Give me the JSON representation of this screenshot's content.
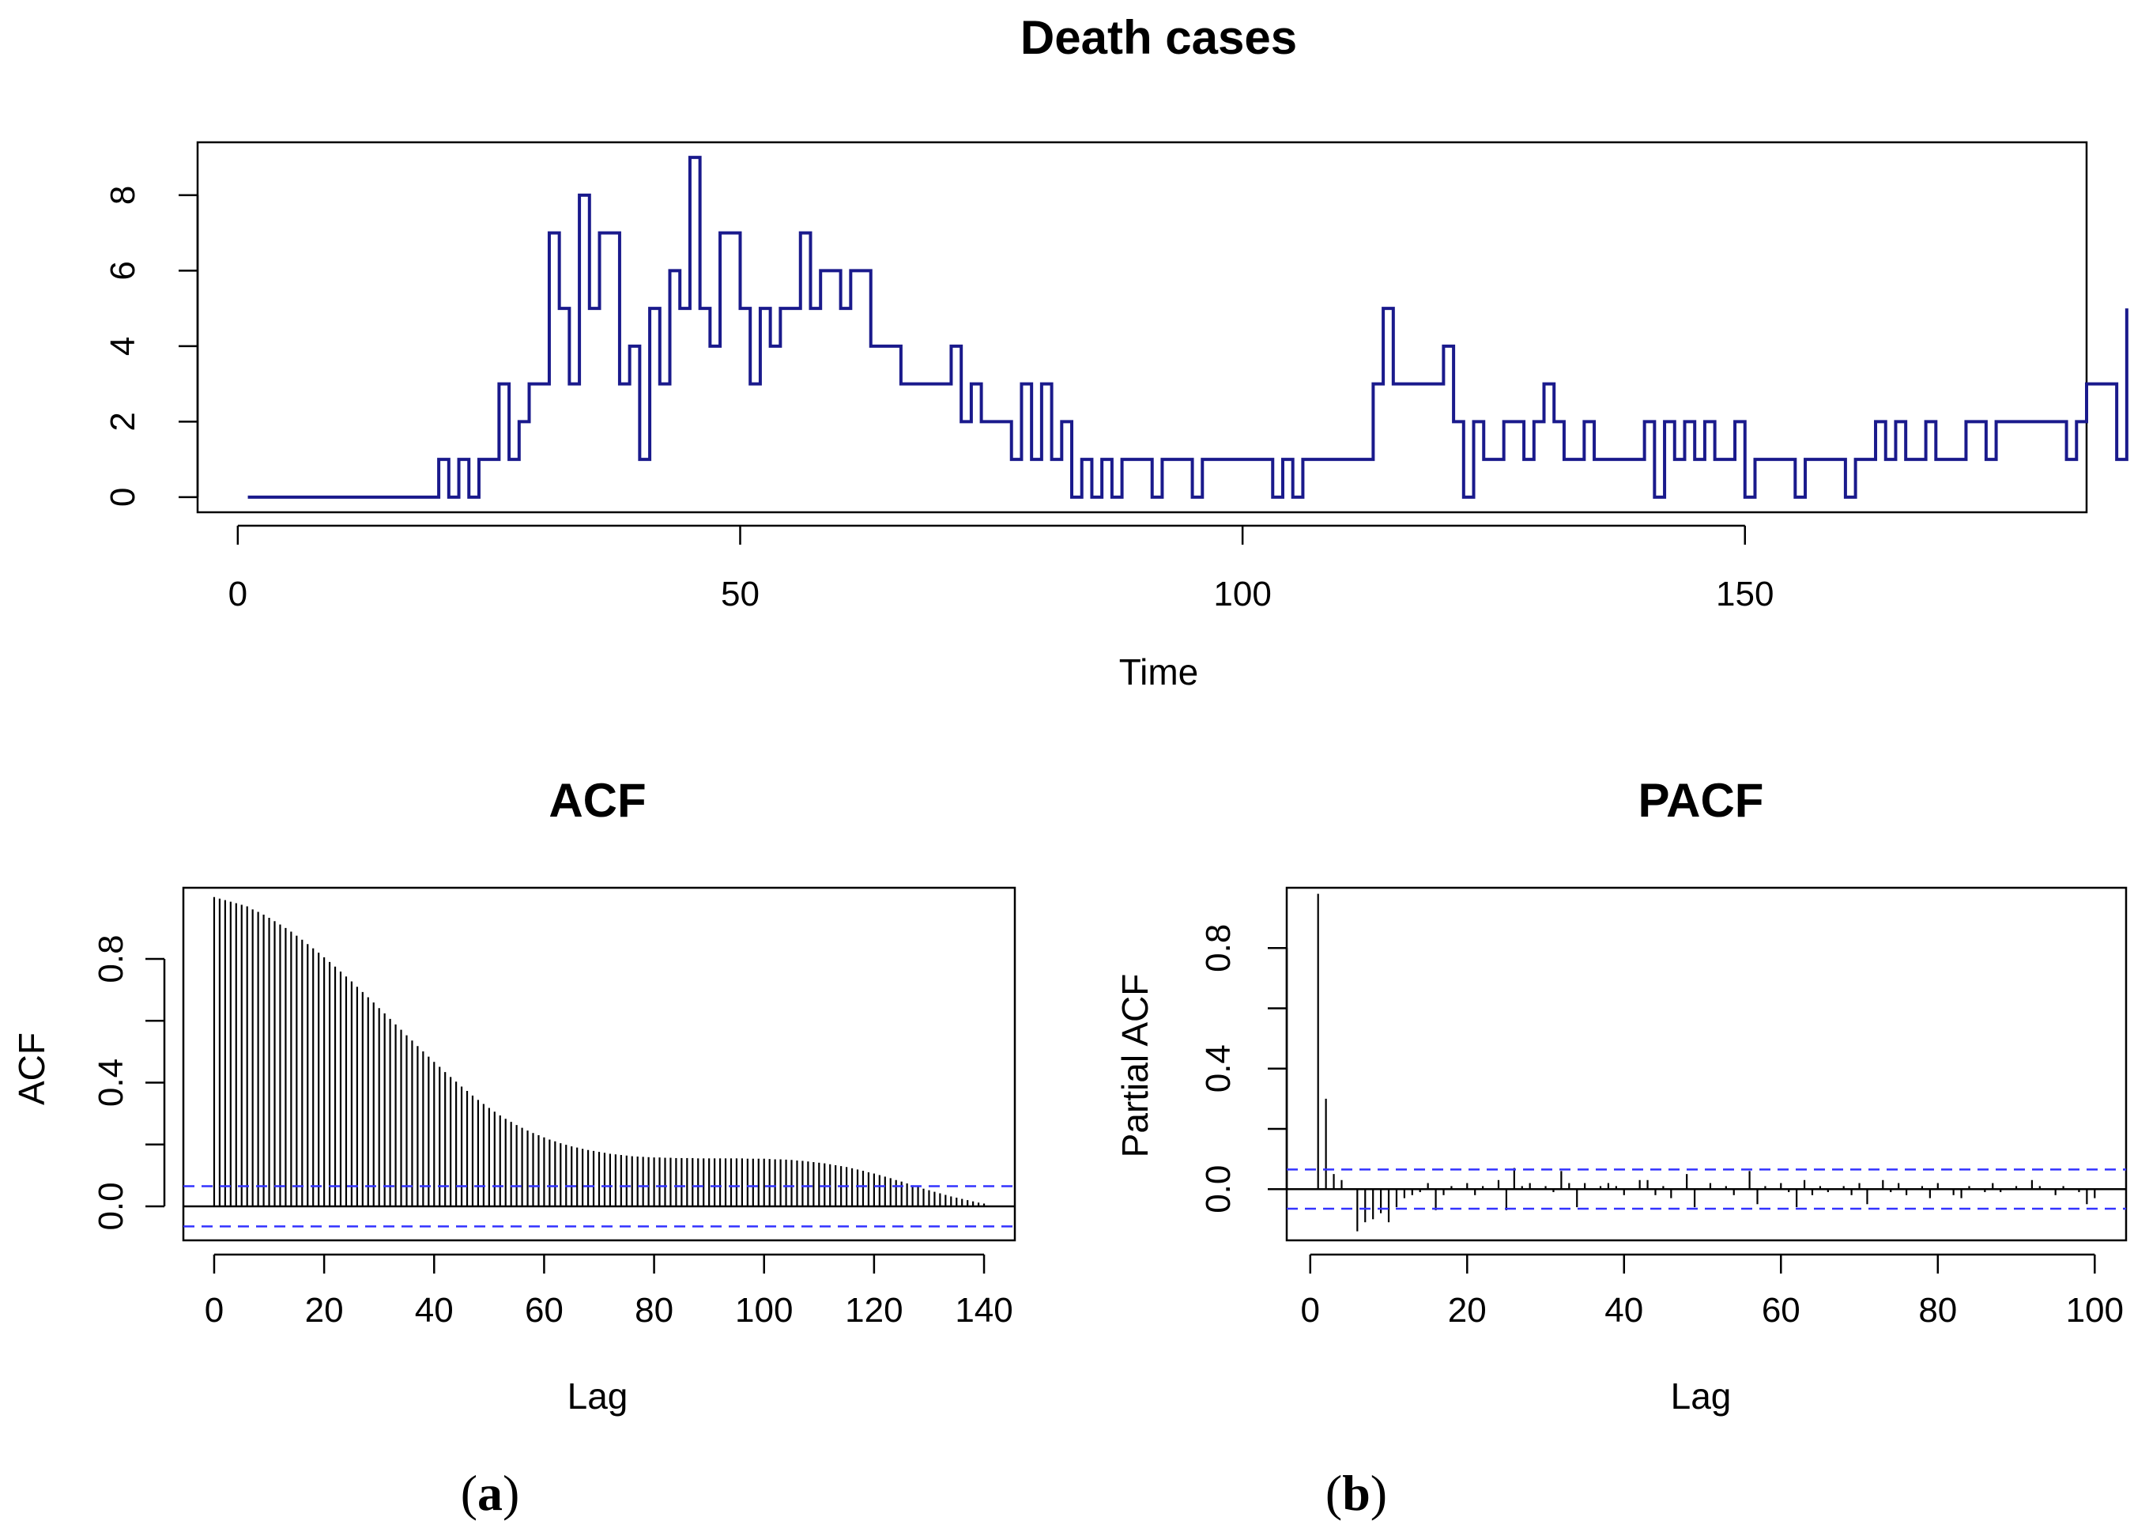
{
  "chart_data": [
    {
      "type": "line",
      "title": "Death cases",
      "xlabel": "Time",
      "ylabel": "",
      "xlim": [
        -4,
        184
      ],
      "ylim": [
        -0.4,
        9.4
      ],
      "xticks": [
        "0",
        "50",
        "100",
        "150"
      ],
      "yticks": [
        "0",
        "2",
        "4",
        "6",
        "8"
      ],
      "step": true,
      "line_color": "#1a1a8c",
      "x_start": 1,
      "values": [
        0,
        0,
        0,
        0,
        0,
        0,
        0,
        0,
        0,
        0,
        0,
        0,
        0,
        0,
        0,
        0,
        0,
        0,
        0,
        1,
        0,
        1,
        0,
        1,
        1,
        3,
        1,
        2,
        3,
        3,
        7,
        5,
        3,
        8,
        5,
        7,
        7,
        3,
        4,
        1,
        5,
        3,
        6,
        5,
        9,
        5,
        4,
        7,
        7,
        5,
        3,
        5,
        4,
        5,
        5,
        7,
        5,
        6,
        6,
        5,
        6,
        6,
        4,
        4,
        4,
        3,
        3,
        3,
        3,
        3,
        4,
        2,
        3,
        2,
        2,
        2,
        1,
        3,
        1,
        3,
        1,
        2,
        0,
        1,
        0,
        1,
        0,
        1,
        1,
        1,
        0,
        1,
        1,
        1,
        0,
        1,
        1,
        1,
        1,
        1,
        1,
        1,
        0,
        1,
        0,
        1,
        1,
        1,
        1,
        1,
        1,
        1,
        3,
        5,
        3,
        3,
        3,
        3,
        3,
        4,
        2,
        0,
        2,
        1,
        1,
        2,
        2,
        1,
        2,
        3,
        2,
        1,
        1,
        2,
        1,
        1,
        1,
        1,
        1,
        2,
        0,
        2,
        1,
        2,
        1,
        2,
        1,
        1,
        2,
        0,
        1,
        1,
        1,
        1,
        0,
        1,
        1,
        1,
        1,
        0,
        1,
        1,
        2,
        1,
        2,
        1,
        1,
        2,
        1,
        1,
        1,
        2,
        2,
        1,
        2,
        2,
        2,
        2,
        2,
        2,
        2,
        1,
        2,
        3,
        3,
        3,
        1,
        5
      ]
    },
    {
      "type": "bar",
      "title": "ACF",
      "xlabel": "Lag",
      "ylabel": "ACF",
      "xlim": [
        -5.6,
        145.6
      ],
      "ylim": [
        -0.11,
        1.03
      ],
      "xticks": [
        "0",
        "20",
        "40",
        "60",
        "80",
        "100",
        "120",
        "140"
      ],
      "yticks": [
        "0.0",
        "0.4",
        "0.8"
      ],
      "confidence_bound": 0.065,
      "bound_color": "#3333ff",
      "lags_start": 0,
      "values": [
        1.0,
        0.995,
        0.99,
        0.985,
        0.98,
        0.975,
        0.97,
        0.96,
        0.952,
        0.943,
        0.933,
        0.922,
        0.911,
        0.9,
        0.888,
        0.875,
        0.862,
        0.848,
        0.834,
        0.82,
        0.805,
        0.79,
        0.775,
        0.759,
        0.743,
        0.727,
        0.71,
        0.693,
        0.676,
        0.659,
        0.641,
        0.624,
        0.606,
        0.588,
        0.571,
        0.553,
        0.536,
        0.518,
        0.501,
        0.484,
        0.467,
        0.451,
        0.434,
        0.418,
        0.403,
        0.387,
        0.373,
        0.358,
        0.344,
        0.331,
        0.318,
        0.306,
        0.294,
        0.283,
        0.273,
        0.263,
        0.254,
        0.245,
        0.237,
        0.23,
        0.223,
        0.216,
        0.21,
        0.204,
        0.199,
        0.194,
        0.19,
        0.186,
        0.182,
        0.179,
        0.176,
        0.173,
        0.17,
        0.168,
        0.166,
        0.164,
        0.162,
        0.161,
        0.16,
        0.159,
        0.158,
        0.158,
        0.157,
        0.157,
        0.156,
        0.156,
        0.156,
        0.156,
        0.155,
        0.155,
        0.155,
        0.155,
        0.155,
        0.155,
        0.155,
        0.155,
        0.155,
        0.154,
        0.154,
        0.154,
        0.154,
        0.153,
        0.152,
        0.152,
        0.151,
        0.15,
        0.148,
        0.147,
        0.145,
        0.143,
        0.141,
        0.139,
        0.136,
        0.133,
        0.13,
        0.127,
        0.123,
        0.119,
        0.115,
        0.11,
        0.106,
        0.101,
        0.096,
        0.091,
        0.085,
        0.08,
        0.074,
        0.068,
        0.063,
        0.057,
        0.052,
        0.047,
        0.042,
        0.037,
        0.032,
        0.028,
        0.024,
        0.02,
        0.016,
        0.012,
        0.009
      ]
    },
    {
      "type": "bar",
      "title": "PACF",
      "xlabel": "Lag",
      "ylabel": "Partial ACF",
      "xlim": [
        -3.0,
        104.0
      ],
      "ylim": [
        -0.17,
        1.0
      ],
      "xticks": [
        "0",
        "20",
        "40",
        "60",
        "80",
        "100"
      ],
      "yticks": [
        "0.0",
        "0.4",
        "0.8"
      ],
      "confidence_bound": 0.065,
      "bound_color": "#3333ff",
      "lags_start": 1,
      "values": [
        0.98,
        0.3,
        0.05,
        0.03,
        0.0,
        -0.14,
        -0.11,
        -0.1,
        -0.08,
        -0.11,
        -0.06,
        -0.03,
        -0.02,
        -0.01,
        0.02,
        -0.07,
        -0.02,
        0.01,
        0.0,
        0.02,
        -0.02,
        0.01,
        0.0,
        0.03,
        -0.07,
        0.07,
        0.01,
        0.02,
        0.0,
        0.01,
        -0.01,
        0.06,
        0.02,
        -0.06,
        0.02,
        0.0,
        0.01,
        0.02,
        0.01,
        -0.02,
        0.0,
        0.03,
        0.03,
        -0.02,
        0.01,
        -0.03,
        0.0,
        0.05,
        -0.06,
        0.0,
        0.02,
        0.0,
        0.01,
        -0.02,
        0.0,
        0.06,
        -0.05,
        0.01,
        0.0,
        0.02,
        -0.01,
        -0.06,
        0.03,
        -0.02,
        0.01,
        -0.01,
        0.0,
        0.01,
        -0.02,
        0.02,
        -0.05,
        0.0,
        0.03,
        -0.01,
        0.02,
        -0.02,
        0.0,
        0.01,
        -0.03,
        0.02,
        0.0,
        -0.02,
        -0.03,
        0.01,
        0.0,
        -0.01,
        0.02,
        -0.01,
        0.0,
        0.01,
        0.0,
        0.03,
        0.01,
        0.0,
        -0.02,
        0.01,
        0.0,
        -0.01,
        -0.05,
        -0.03
      ]
    }
  ],
  "panels": {
    "a": "a",
    "b": "b"
  }
}
